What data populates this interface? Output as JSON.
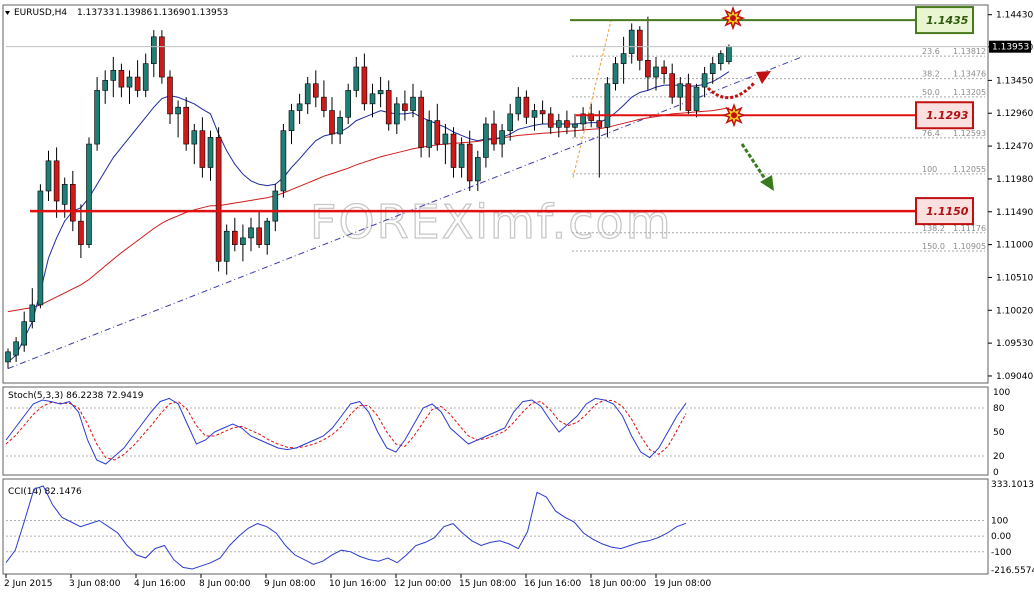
{
  "header": {
    "symbol": "EURUSD,H4",
    "open": "1.13733",
    "high": "1.13986",
    "low": "1.13690",
    "close": "1.13953"
  },
  "current_price": "1.13953",
  "watermark": "FOREXimf.com",
  "colors": {
    "bull": "#1f7f76",
    "bear": "#d01a1a",
    "ma_fast": "#1c2b9c",
    "ma_slow": "#d01a1a",
    "trend": "#3a3aa8",
    "resistance": "#4a7a1e",
    "support": "#e01010",
    "stoch_main": "#2c3bd0",
    "stoch_signal": "#e01010",
    "cci": "#2c3bd0"
  },
  "levels": [
    {
      "label": "1.1435",
      "kind": "resistance"
    },
    {
      "label": "1.1293",
      "kind": "pivot"
    },
    {
      "label": "1.1150",
      "kind": "support"
    }
  ],
  "fibonacci": [
    {
      "ratio": "23.6",
      "price": "1.13812"
    },
    {
      "ratio": "38.2",
      "price": "1.13476"
    },
    {
      "ratio": "50.0",
      "price": "1.13205"
    },
    {
      "ratio": "76.4",
      "price": "1.12593"
    },
    {
      "ratio": "100",
      "price": "1.12055"
    },
    {
      "ratio": "138.2",
      "price": "1.11176"
    },
    {
      "ratio": "150.0",
      "price": "1.10905"
    }
  ],
  "arrows": [
    {
      "name": "bullish-scenario-arrow",
      "direction": "up"
    },
    {
      "name": "bearish-scenario-arrow",
      "direction": "down"
    }
  ],
  "stoch_panel": {
    "label": "Stoch(5,3,3) 86.2238 72.9419",
    "ticks": [
      "100",
      "80",
      "50",
      "20",
      "0"
    ]
  },
  "cci_panel": {
    "label": "CCI(14) 82.1476",
    "ticks": [
      "333.1013",
      "100",
      "0.00",
      "-100",
      "-216.5574"
    ]
  },
  "chart_data": {
    "type": "candlestick",
    "symbol": "EURUSD",
    "timeframe": "H4",
    "price_axis": {
      "ticks": [
        "1.14430",
        "1.13950",
        "1.13450",
        "1.12960",
        "1.12470",
        "1.11980",
        "1.11490",
        "1.11000",
        "1.10510",
        "1.10020",
        "1.09530",
        "1.09040"
      ],
      "ylim": [
        1.0895,
        1.1456
      ]
    },
    "time_axis": {
      "labels": [
        "2 Jun 2015",
        "3 Jun 08:00",
        "4 Jun 16:00",
        "8 Jun 00:00",
        "9 Jun 08:00",
        "10 Jun 16:00",
        "12 Jun 00:00",
        "15 Jun 08:00",
        "16 Jun 16:00",
        "18 Jun 00:00",
        "19 Jun 08:00"
      ]
    },
    "ohlc": [
      [
        1.0925,
        1.0945,
        1.0915,
        1.094
      ],
      [
        1.0935,
        1.0962,
        1.0925,
        1.0955
      ],
      [
        1.095,
        1.1,
        1.094,
        1.0985
      ],
      [
        1.0985,
        1.1035,
        1.0975,
        1.101
      ],
      [
        1.101,
        1.119,
        1.1005,
        1.118
      ],
      [
        1.118,
        1.124,
        1.1165,
        1.1225
      ],
      [
        1.1225,
        1.1245,
        1.114,
        1.1165
      ],
      [
        1.116,
        1.12,
        1.114,
        1.119
      ],
      [
        1.119,
        1.121,
        1.112,
        1.1135
      ],
      [
        1.1135,
        1.116,
        1.108,
        1.11
      ],
      [
        1.11,
        1.126,
        1.1095,
        1.125
      ],
      [
        1.125,
        1.135,
        1.124,
        1.133
      ],
      [
        1.133,
        1.136,
        1.131,
        1.1345
      ],
      [
        1.1345,
        1.138,
        1.132,
        1.136
      ],
      [
        1.136,
        1.137,
        1.132,
        1.1335
      ],
      [
        1.1335,
        1.136,
        1.131,
        1.135
      ],
      [
        1.135,
        1.1375,
        1.132,
        1.133
      ],
      [
        1.133,
        1.1385,
        1.132,
        1.137
      ],
      [
        1.137,
        1.142,
        1.135,
        1.141
      ],
      [
        1.141,
        1.142,
        1.134,
        1.135
      ],
      [
        1.135,
        1.136,
        1.128,
        1.1295
      ],
      [
        1.1295,
        1.1315,
        1.126,
        1.1305
      ],
      [
        1.1305,
        1.132,
        1.124,
        1.125
      ],
      [
        1.125,
        1.128,
        1.122,
        1.127
      ],
      [
        1.127,
        1.129,
        1.12,
        1.1215
      ],
      [
        1.1215,
        1.127,
        1.1195,
        1.126
      ],
      [
        1.126,
        1.1275,
        1.106,
        1.1075
      ],
      [
        1.1075,
        1.113,
        1.1055,
        1.112
      ],
      [
        1.112,
        1.114,
        1.109,
        1.11
      ],
      [
        1.11,
        1.113,
        1.1075,
        1.111
      ],
      [
        1.111,
        1.114,
        1.109,
        1.1125
      ],
      [
        1.1125,
        1.115,
        1.1095,
        1.11
      ],
      [
        1.11,
        1.114,
        1.1085,
        1.1135
      ],
      [
        1.1135,
        1.119,
        1.112,
        1.118
      ],
      [
        1.118,
        1.128,
        1.117,
        1.127
      ],
      [
        1.127,
        1.131,
        1.125,
        1.13
      ],
      [
        1.13,
        1.1325,
        1.128,
        1.131
      ],
      [
        1.131,
        1.135,
        1.1295,
        1.134
      ],
      [
        1.134,
        1.136,
        1.1305,
        1.132
      ],
      [
        1.132,
        1.1345,
        1.129,
        1.13
      ],
      [
        1.13,
        1.132,
        1.125,
        1.1265
      ],
      [
        1.1265,
        1.13,
        1.125,
        1.129
      ],
      [
        1.129,
        1.134,
        1.128,
        1.133
      ],
      [
        1.133,
        1.138,
        1.132,
        1.1365
      ],
      [
        1.1365,
        1.1385,
        1.13,
        1.131
      ],
      [
        1.131,
        1.134,
        1.129,
        1.1325
      ],
      [
        1.1325,
        1.135,
        1.1305,
        1.133
      ],
      [
        1.133,
        1.1345,
        1.127,
        1.128
      ],
      [
        1.128,
        1.132,
        1.1265,
        1.131
      ],
      [
        1.131,
        1.133,
        1.1285,
        1.13
      ],
      [
        1.13,
        1.134,
        1.129,
        1.132
      ],
      [
        1.132,
        1.133,
        1.123,
        1.1245
      ],
      [
        1.1245,
        1.13,
        1.123,
        1.1285
      ],
      [
        1.1285,
        1.131,
        1.124,
        1.125
      ],
      [
        1.125,
        1.128,
        1.122,
        1.1265
      ],
      [
        1.1265,
        1.1275,
        1.12,
        1.1215
      ],
      [
        1.1215,
        1.126,
        1.12,
        1.125
      ],
      [
        1.125,
        1.127,
        1.118,
        1.1195
      ],
      [
        1.1195,
        1.124,
        1.118,
        1.123
      ],
      [
        1.123,
        1.129,
        1.1215,
        1.128
      ],
      [
        1.128,
        1.13,
        1.124,
        1.125
      ],
      [
        1.125,
        1.128,
        1.123,
        1.127
      ],
      [
        1.127,
        1.131,
        1.1255,
        1.1295
      ],
      [
        1.1295,
        1.1335,
        1.1285,
        1.132
      ],
      [
        1.132,
        1.133,
        1.128,
        1.129
      ],
      [
        1.129,
        1.131,
        1.127,
        1.13
      ],
      [
        1.13,
        1.1315,
        1.128,
        1.1295
      ],
      [
        1.1295,
        1.1305,
        1.1265,
        1.1275
      ],
      [
        1.1275,
        1.1295,
        1.126,
        1.1285
      ],
      [
        1.1285,
        1.13,
        1.1265,
        1.1275
      ],
      [
        1.1275,
        1.1295,
        1.126,
        1.128
      ],
      [
        1.128,
        1.1305,
        1.127,
        1.1295
      ],
      [
        1.1295,
        1.131,
        1.1275,
        1.1285
      ],
      [
        1.1285,
        1.13,
        1.12,
        1.1275
      ],
      [
        1.1275,
        1.135,
        1.126,
        1.134
      ],
      [
        1.134,
        1.138,
        1.133,
        1.137
      ],
      [
        1.137,
        1.141,
        1.134,
        1.1385
      ],
      [
        1.1385,
        1.143,
        1.137,
        1.142
      ],
      [
        1.142,
        1.1426,
        1.136,
        1.1375
      ],
      [
        1.1375,
        1.144,
        1.133,
        1.135
      ],
      [
        1.135,
        1.138,
        1.133,
        1.1365
      ],
      [
        1.1365,
        1.1375,
        1.134,
        1.1355
      ],
      [
        1.1355,
        1.137,
        1.131,
        1.132
      ],
      [
        1.132,
        1.135,
        1.13,
        1.134
      ],
      [
        1.134,
        1.1355,
        1.1295,
        1.13
      ],
      [
        1.13,
        1.134,
        1.129,
        1.1335
      ],
      [
        1.1335,
        1.1365,
        1.132,
        1.1355
      ],
      [
        1.1355,
        1.138,
        1.134,
        1.137
      ],
      [
        1.137,
        1.139,
        1.136,
        1.1385
      ],
      [
        1.1373,
        1.13986,
        1.1369,
        1.13953
      ]
    ],
    "ma_fast": [
      1.0925,
      1.0935,
      1.096,
      1.0985,
      1.103,
      1.108,
      1.111,
      1.1135,
      1.115,
      1.1155,
      1.117,
      1.119,
      1.121,
      1.123,
      1.1245,
      1.126,
      1.1275,
      1.129,
      1.1305,
      1.1318,
      1.1322,
      1.132,
      1.1315,
      1.131,
      1.1302,
      1.1295,
      1.1265,
      1.124,
      1.122,
      1.1205,
      1.1195,
      1.119,
      1.1188,
      1.119,
      1.12,
      1.1215,
      1.1228,
      1.1242,
      1.1255,
      1.1262,
      1.1265,
      1.1268,
      1.1275,
      1.1285,
      1.129,
      1.1295,
      1.13,
      1.1297,
      1.1295,
      1.1295,
      1.1297,
      1.129,
      1.1285,
      1.128,
      1.1275,
      1.1268,
      1.1263,
      1.1258,
      1.1255,
      1.1258,
      1.1258,
      1.126,
      1.1265,
      1.1272,
      1.1275,
      1.1278,
      1.128,
      1.128,
      1.128,
      1.128,
      1.128,
      1.1281,
      1.1282,
      1.1282,
      1.1288,
      1.1297,
      1.1308,
      1.132,
      1.1327,
      1.133,
      1.1335,
      1.1338,
      1.1338,
      1.1338,
      1.1336,
      1.1337,
      1.1339,
      1.1343,
      1.135,
      1.1358
    ],
    "ma_slow": [
      1.1,
      1.1002,
      1.1004,
      1.1006,
      1.101,
      1.1016,
      1.1022,
      1.1028,
      1.1034,
      1.104,
      1.1048,
      1.1058,
      1.1068,
      1.1078,
      1.1088,
      1.1097,
      1.1106,
      1.1115,
      1.1124,
      1.1132,
      1.1138,
      1.1143,
      1.1148,
      1.1152,
      1.1155,
      1.1158,
      1.1158,
      1.116,
      1.1162,
      1.1164,
      1.1166,
      1.1168,
      1.117,
      1.1173,
      1.1177,
      1.1182,
      1.1187,
      1.1192,
      1.1197,
      1.1202,
      1.1206,
      1.121,
      1.1214,
      1.1219,
      1.1223,
      1.1227,
      1.1231,
      1.1234,
      1.1237,
      1.124,
      1.1243,
      1.1245,
      1.1247,
      1.1249,
      1.125,
      1.1251,
      1.1252,
      1.1253,
      1.1254,
      1.1256,
      1.1257,
      1.1259,
      1.1261,
      1.1263,
      1.1264,
      1.1265,
      1.1266,
      1.1267,
      1.1268,
      1.1269,
      1.127,
      1.1271,
      1.1272,
      1.1273,
      1.1275,
      1.1278,
      1.1281,
      1.1284,
      1.1287,
      1.1289,
      1.1291,
      1.1293,
      1.1295,
      1.1296,
      1.1297,
      1.1298,
      1.1299,
      1.13,
      1.1302,
      1.1304
    ],
    "trendline": [
      [
        0,
        1.0915
      ],
      [
        98,
        1.138
      ]
    ],
    "level_values": {
      "resistance": 1.1435,
      "pivot": 1.1293,
      "support": 1.115
    },
    "stoch_main": [
      40,
      55,
      70,
      85,
      90,
      88,
      85,
      88,
      75,
      40,
      15,
      10,
      20,
      30,
      45,
      60,
      75,
      88,
      92,
      85,
      60,
      35,
      40,
      50,
      55,
      60,
      55,
      45,
      40,
      35,
      30,
      28,
      30,
      35,
      40,
      45,
      55,
      70,
      85,
      88,
      75,
      50,
      30,
      25,
      40,
      60,
      80,
      85,
      75,
      55,
      45,
      35,
      40,
      45,
      50,
      55,
      75,
      88,
      90,
      82,
      65,
      50,
      60,
      70,
      85,
      92,
      90,
      85,
      70,
      45,
      25,
      18,
      30,
      50,
      70,
      86
    ],
    "stoch_signal": [
      35,
      45,
      58,
      72,
      82,
      87,
      86,
      86,
      80,
      60,
      35,
      18,
      15,
      22,
      32,
      45,
      58,
      72,
      85,
      88,
      78,
      58,
      45,
      45,
      50,
      55,
      57,
      52,
      47,
      40,
      35,
      31,
      30,
      32,
      35,
      40,
      47,
      57,
      72,
      83,
      83,
      70,
      50,
      35,
      32,
      45,
      62,
      78,
      82,
      72,
      58,
      45,
      40,
      42,
      46,
      51,
      62,
      75,
      86,
      88,
      78,
      64,
      58,
      62,
      72,
      84,
      90,
      89,
      82,
      66,
      45,
      28,
      22,
      32,
      52,
      73
    ],
    "cci": [
      -170,
      -90,
      100,
      300,
      320,
      200,
      120,
      90,
      60,
      80,
      100,
      60,
      20,
      -60,
      -120,
      -140,
      -80,
      -60,
      -150,
      -200,
      -210,
      -190,
      -170,
      -140,
      -60,
      0,
      50,
      80,
      60,
      20,
      -60,
      -120,
      -150,
      -180,
      -160,
      -120,
      -90,
      -100,
      -130,
      -150,
      -160,
      -140,
      -170,
      -120,
      -60,
      -40,
      -10,
      60,
      80,
      20,
      -30,
      -60,
      -40,
      -30,
      -50,
      -80,
      30,
      280,
      250,
      160,
      120,
      90,
      20,
      -20,
      -50,
      -70,
      -80,
      -60,
      -40,
      -30,
      -10,
      20,
      60,
      82
    ]
  }
}
